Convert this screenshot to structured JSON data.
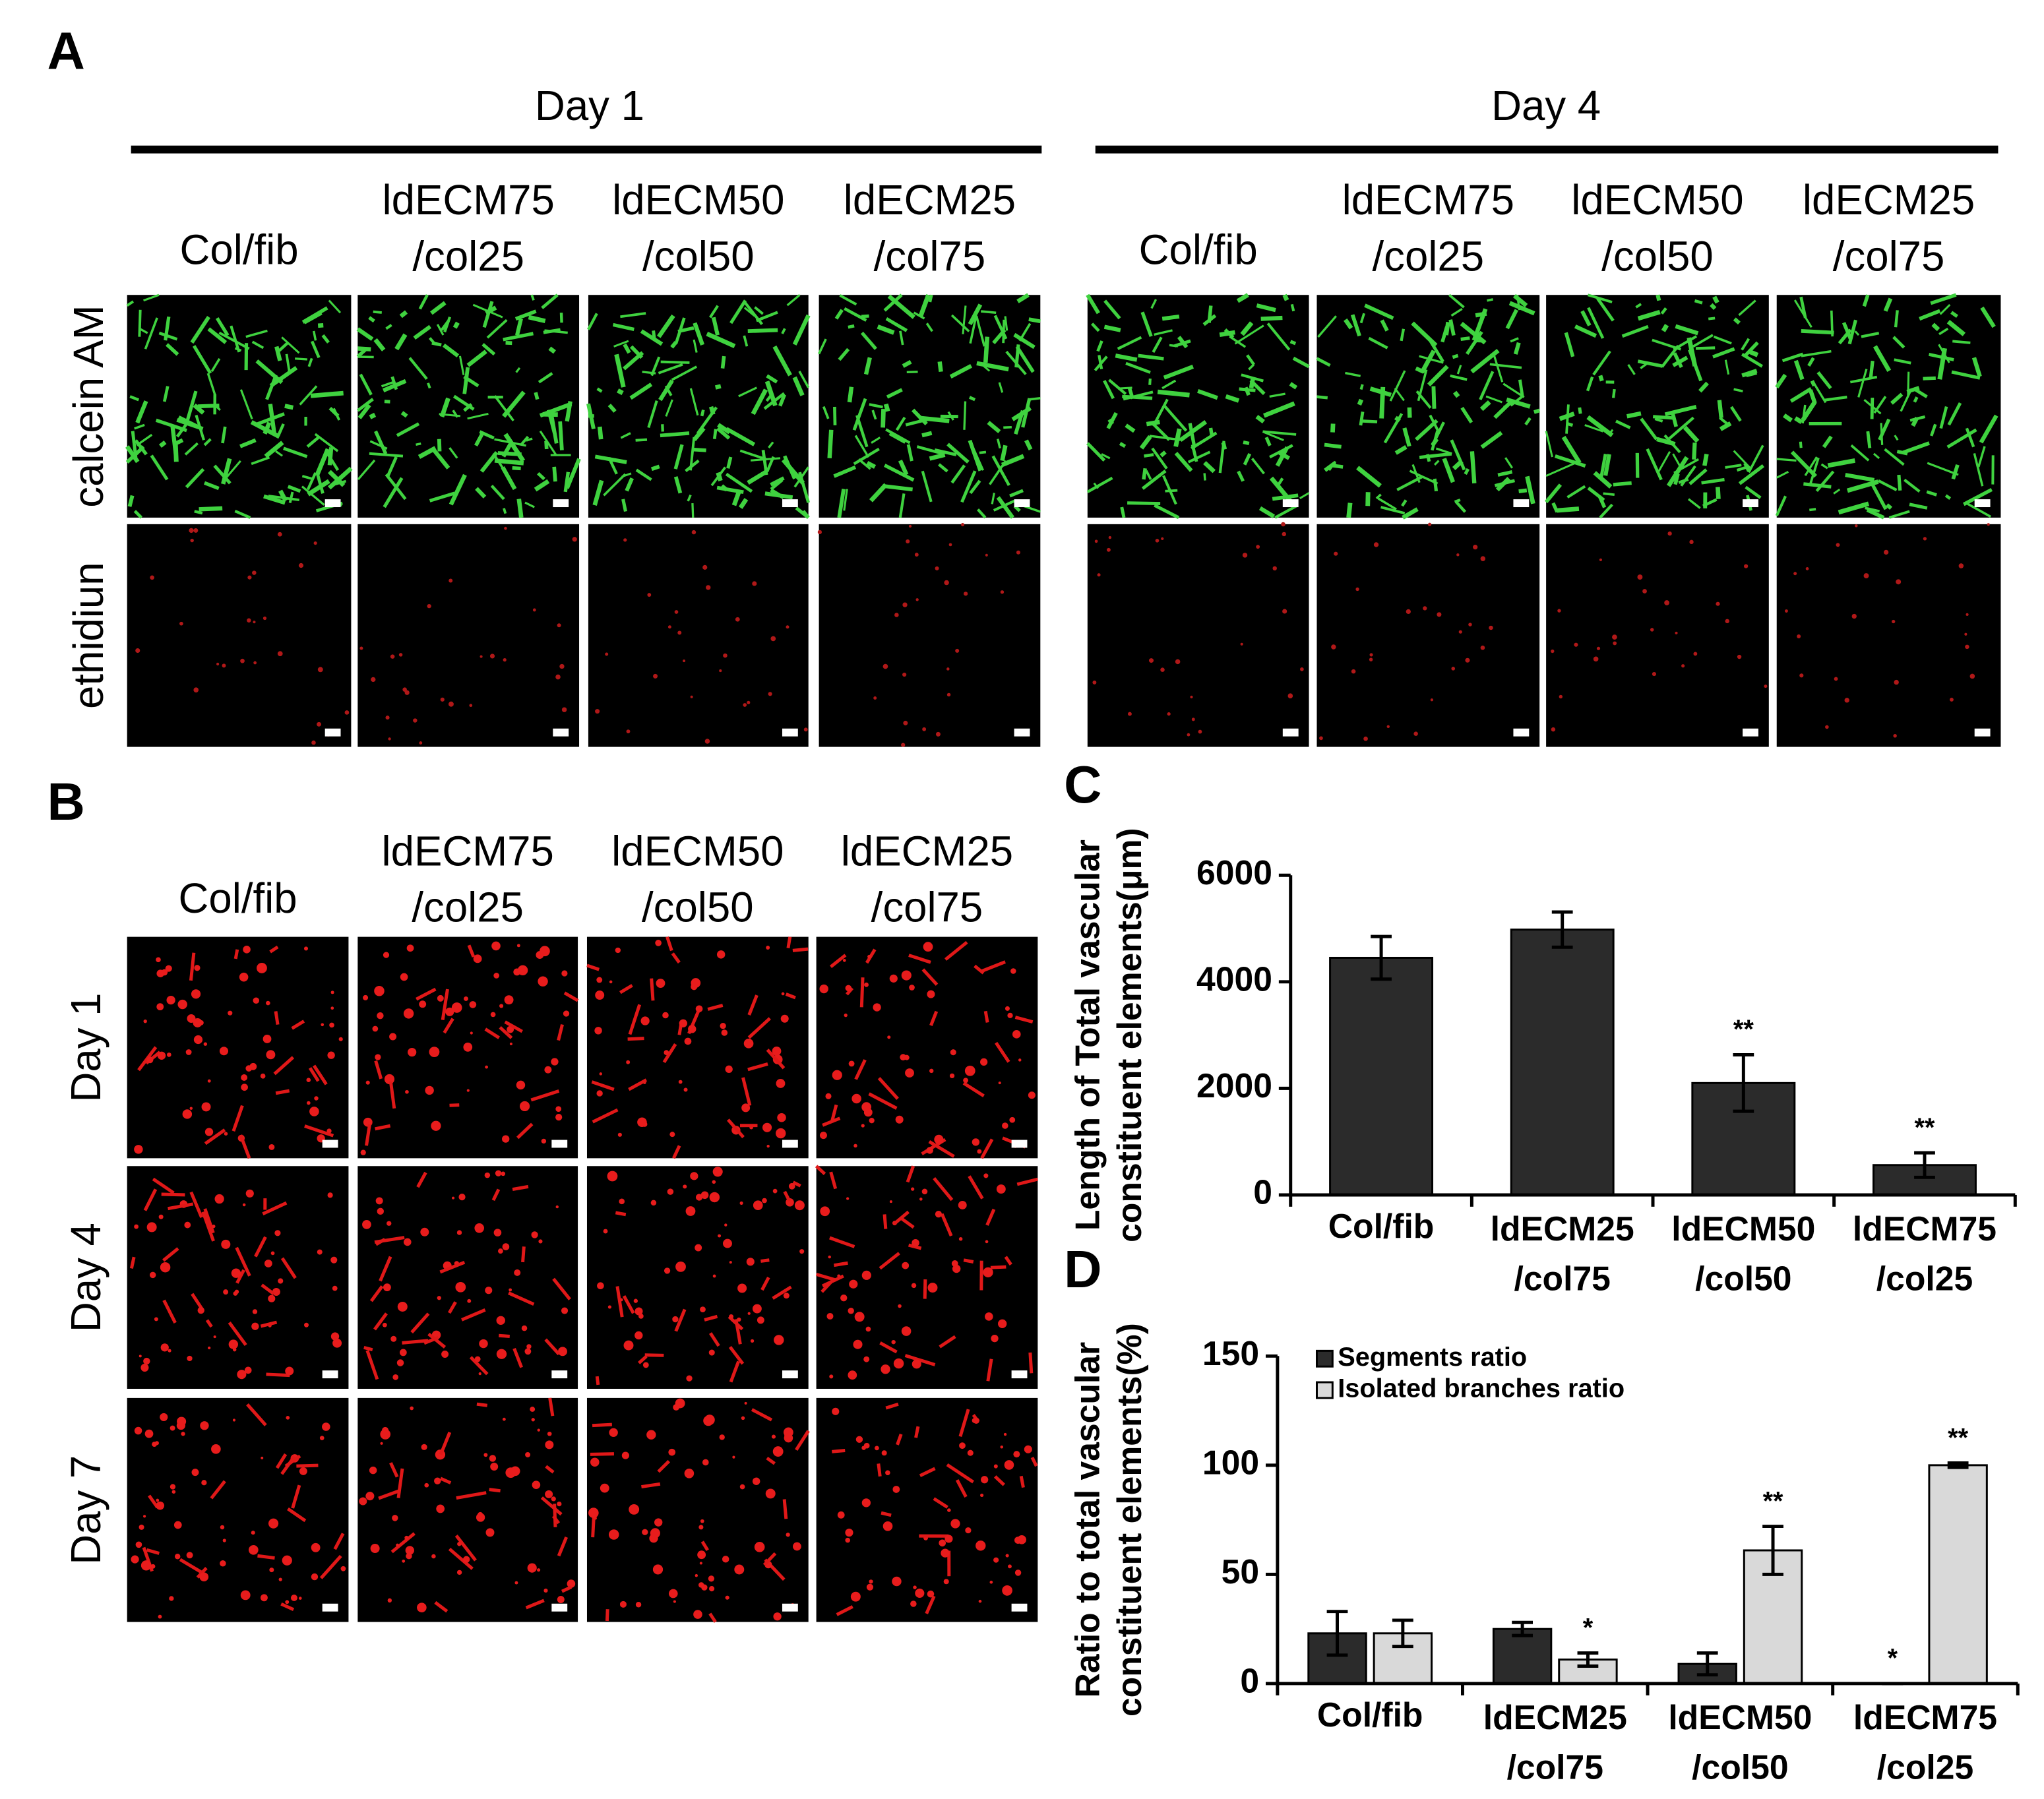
{
  "figure": {
    "panel_a": {
      "letter": "A",
      "days": [
        "Day 1",
        "Day 4"
      ],
      "columns": [
        [
          "Col/fib"
        ],
        [
          "ldECM75",
          "/col25"
        ],
        [
          "ldECM50",
          "/col50"
        ],
        [
          "ldECM25",
          "/col75"
        ]
      ],
      "rows": [
        "calcein AM",
        "ethidiun"
      ]
    },
    "panel_b": {
      "letter": "B",
      "columns": [
        [
          "Col/fib"
        ],
        [
          "ldECM75",
          "/col25"
        ],
        [
          "ldECM50",
          "/col50"
        ],
        [
          "ldECM25",
          "/col75"
        ]
      ],
      "rows": [
        "Day 1",
        "Day 4",
        "Day 7"
      ]
    }
  },
  "chart_data": [
    {
      "type": "bar",
      "panel": "C",
      "ylabel": [
        "Length of Total vascular",
        "constituent elements(μm)"
      ],
      "categories": [
        [
          "Col/fib"
        ],
        [
          "ldECM25",
          "/col75"
        ],
        [
          "ldECM50",
          "/col50"
        ],
        [
          "ldECM75",
          "/col25"
        ]
      ],
      "series": [
        {
          "color": "#2b2b2b",
          "values": [
            4450,
            4980,
            2100,
            560
          ],
          "errors": [
            400,
            330,
            530,
            230
          ],
          "significance": [
            null,
            null,
            "**",
            "**"
          ]
        }
      ],
      "ylim": [
        0,
        6000
      ],
      "yticks": [
        0,
        2000,
        4000,
        6000
      ],
      "grid": false
    },
    {
      "type": "bar",
      "panel": "D",
      "ylabel": [
        "Ratio to total vascular",
        "constituent elements(%)"
      ],
      "categories": [
        [
          "Col/fib"
        ],
        [
          "ldECM25",
          "/col75"
        ],
        [
          "ldECM50",
          "/col50"
        ],
        [
          "ldECM75",
          "/col25"
        ]
      ],
      "series": [
        {
          "name": "Segments ratio",
          "color": "#2b2b2b",
          "values": [
            23,
            25,
            9,
            0
          ],
          "errors": [
            10,
            3,
            5,
            0
          ],
          "significance": [
            null,
            null,
            null,
            "*"
          ]
        },
        {
          "name": "Isolated branches ratio",
          "color": "#d9d9d9",
          "values": [
            23,
            11,
            61,
            100
          ],
          "errors": [
            6,
            3,
            11,
            1
          ],
          "significance": [
            null,
            "*",
            "**",
            "**"
          ]
        }
      ],
      "ylim": [
        0,
        150
      ],
      "yticks": [
        0,
        50,
        100,
        150
      ],
      "grid": false,
      "legend": "top-left"
    }
  ]
}
